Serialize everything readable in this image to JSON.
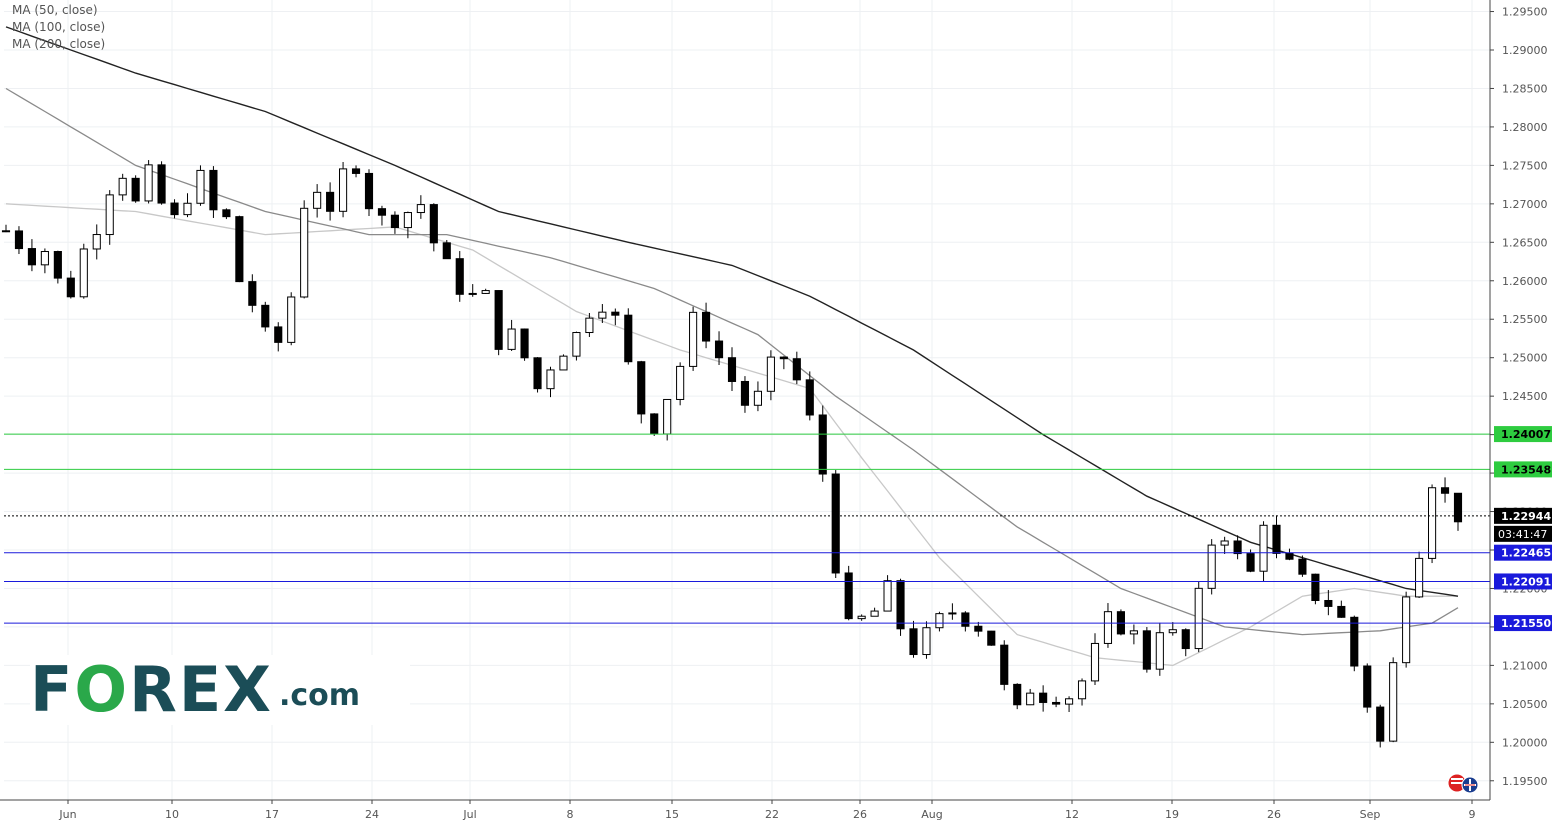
{
  "legend": [
    {
      "label": "MA (50, close)"
    },
    {
      "label": "MA (100, close)"
    },
    {
      "label": "MA (200, close)"
    }
  ],
  "logo": {
    "main_left": "F",
    "main_o": "O",
    "main_right": "REX",
    "suffix": ".com"
  },
  "countdown": "03:41:47",
  "colors": {
    "support": "#1a1adb",
    "resistance": "#2ecc40",
    "candle": "#000000",
    "ma50": "#c8c8c8",
    "ma100": "#8a8a8a",
    "ma200": "#222222"
  },
  "chart_data": {
    "type": "candlestick",
    "y_axis": {
      "ticks": [
        "1.29500",
        "1.29000",
        "1.28500",
        "1.28000",
        "1.27500",
        "1.27000",
        "1.26500",
        "1.26000",
        "1.25500",
        "1.25000",
        "1.24500",
        "1.24000",
        "1.23500",
        "1.23000",
        "1.22500",
        "1.22000",
        "1.21500",
        "1.21000",
        "1.20500",
        "1.20000",
        "1.19500"
      ],
      "range": [
        1.1925,
        1.2965
      ]
    },
    "x_axis": {
      "labels": [
        "Jun",
        "10",
        "17",
        "24",
        "Jul",
        "8",
        "15",
        "22",
        "26",
        "Aug",
        "12",
        "19",
        "26",
        "Sep",
        "9"
      ]
    },
    "price_levels": [
      {
        "label": "1.24007",
        "value": 1.24007,
        "kind": "resistance"
      },
      {
        "label": "1.23548",
        "value": 1.23548,
        "kind": "resistance"
      },
      {
        "label": "1.22944",
        "value": 1.22944,
        "kind": "last"
      },
      {
        "label": "1.22465",
        "value": 1.22465,
        "kind": "support"
      },
      {
        "label": "1.22091",
        "value": 1.22091,
        "kind": "support"
      },
      {
        "label": "1.21550",
        "value": 1.2155,
        "kind": "support"
      }
    ],
    "close_path": [
      [
        0,
        1.2665
      ],
      [
        2,
        1.263
      ],
      [
        3,
        1.264
      ],
      [
        4,
        1.26
      ],
      [
        5,
        1.2585
      ],
      [
        6,
        1.264
      ],
      [
        7,
        1.267
      ],
      [
        8,
        1.272
      ],
      [
        9,
        1.274
      ],
      [
        10,
        1.27
      ],
      [
        11,
        1.274
      ],
      [
        12,
        1.27
      ],
      [
        13,
        1.268
      ],
      [
        14,
        1.271
      ],
      [
        15,
        1.2735
      ],
      [
        16,
        1.269
      ],
      [
        17,
        1.268
      ],
      [
        18,
        1.26
      ],
      [
        19,
        1.257
      ],
      [
        20,
        1.253
      ],
      [
        21,
        1.252
      ],
      [
        22,
        1.258
      ],
      [
        23,
        1.27
      ],
      [
        24,
        1.272
      ],
      [
        25,
        1.268
      ],
      [
        26,
        1.274
      ],
      [
        27,
        1.275
      ],
      [
        28,
        1.27
      ],
      [
        29,
        1.268
      ],
      [
        30,
        1.268
      ],
      [
        31,
        1.269
      ],
      [
        32,
        1.27
      ],
      [
        33,
        1.265
      ],
      [
        34,
        1.262
      ],
      [
        35,
        1.259
      ],
      [
        36,
        1.258
      ],
      [
        37,
        1.258
      ],
      [
        38,
        1.252
      ],
      [
        39,
        1.253
      ],
      [
        40,
        1.25
      ],
      [
        41,
        1.246
      ],
      [
        42,
        1.249
      ],
      [
        43,
        1.251
      ],
      [
        44,
        1.253
      ],
      [
        45,
        1.256
      ],
      [
        46,
        1.257
      ],
      [
        47,
        1.255
      ],
      [
        48,
        1.249
      ],
      [
        49,
        1.243
      ],
      [
        50,
        1.241
      ],
      [
        51,
        1.245
      ],
      [
        52,
        1.249
      ],
      [
        53,
        1.255
      ],
      [
        54,
        1.253
      ],
      [
        55,
        1.25
      ],
      [
        56,
        1.247
      ],
      [
        57,
        1.244
      ],
      [
        58,
        1.245
      ],
      [
        59,
        1.249
      ],
      [
        60,
        1.25
      ],
      [
        61,
        1.247
      ],
      [
        62,
        1.242
      ],
      [
        63,
        1.235
      ],
      [
        64,
        1.223
      ],
      [
        65,
        1.215
      ],
      [
        66,
        1.216
      ],
      [
        67,
        1.217
      ],
      [
        68,
        1.22
      ],
      [
        69,
        1.215
      ],
      [
        70,
        1.212
      ],
      [
        71,
        1.214
      ],
      [
        72,
        1.216
      ],
      [
        73,
        1.217
      ],
      [
        74,
        1.216
      ],
      [
        75,
        1.215
      ],
      [
        76,
        1.213
      ],
      [
        77,
        1.207
      ],
      [
        78,
        1.204
      ],
      [
        79,
        1.207
      ],
      [
        80,
        1.206
      ],
      [
        81,
        1.206
      ],
      [
        82,
        1.206
      ],
      [
        83,
        1.208
      ],
      [
        84,
        1.212
      ],
      [
        85,
        1.216
      ],
      [
        86,
        1.215
      ],
      [
        87,
        1.214
      ],
      [
        88,
        1.21
      ],
      [
        89,
        1.215
      ],
      [
        90,
        1.214
      ],
      [
        91,
        1.212
      ],
      [
        92,
        1.219
      ],
      [
        93,
        1.226
      ],
      [
        94,
        1.227
      ],
      [
        95,
        1.224
      ],
      [
        96,
        1.222
      ],
      [
        97,
        1.229
      ],
      [
        98,
        1.224
      ],
      [
        99,
        1.223
      ],
      [
        100,
        1.221
      ],
      [
        101,
        1.219
      ],
      [
        102,
        1.218
      ],
      [
        103,
        1.216
      ],
      [
        104,
        1.21
      ],
      [
        105,
        1.205
      ],
      [
        106,
        1.2
      ],
      [
        107,
        1.21
      ],
      [
        108,
        1.22
      ],
      [
        109,
        1.225
      ],
      [
        110,
        1.234
      ],
      [
        111,
        1.232
      ],
      [
        112,
        1.2294
      ]
    ],
    "ma_curves": {
      "ma50": [
        [
          0,
          1.27
        ],
        [
          10,
          1.269
        ],
        [
          20,
          1.266
        ],
        [
          30,
          1.267
        ],
        [
          36,
          1.264
        ],
        [
          44,
          1.256
        ],
        [
          52,
          1.251
        ],
        [
          58,
          1.248
        ],
        [
          62,
          1.246
        ],
        [
          66,
          1.237
        ],
        [
          72,
          1.224
        ],
        [
          78,
          1.214
        ],
        [
          84,
          1.211
        ],
        [
          90,
          1.21
        ],
        [
          96,
          1.215
        ],
        [
          100,
          1.219
        ],
        [
          104,
          1.22
        ],
        [
          108,
          1.219
        ],
        [
          112,
          1.219
        ]
      ],
      "ma100": [
        [
          0,
          1.285
        ],
        [
          10,
          1.275
        ],
        [
          20,
          1.269
        ],
        [
          28,
          1.266
        ],
        [
          34,
          1.266
        ],
        [
          42,
          1.263
        ],
        [
          50,
          1.259
        ],
        [
          58,
          1.253
        ],
        [
          64,
          1.245
        ],
        [
          70,
          1.238
        ],
        [
          78,
          1.228
        ],
        [
          86,
          1.22
        ],
        [
          94,
          1.215
        ],
        [
          100,
          1.214
        ],
        [
          106,
          1.2145
        ],
        [
          110,
          1.2155
        ],
        [
          112,
          1.2175
        ]
      ],
      "ma200": [
        [
          0,
          1.293
        ],
        [
          10,
          1.287
        ],
        [
          20,
          1.282
        ],
        [
          30,
          1.275
        ],
        [
          38,
          1.269
        ],
        [
          48,
          1.265
        ],
        [
          56,
          1.262
        ],
        [
          62,
          1.258
        ],
        [
          70,
          1.251
        ],
        [
          80,
          1.24
        ],
        [
          88,
          1.232
        ],
        [
          96,
          1.226
        ],
        [
          102,
          1.223
        ],
        [
          108,
          1.22
        ],
        [
          112,
          1.219
        ]
      ]
    }
  }
}
